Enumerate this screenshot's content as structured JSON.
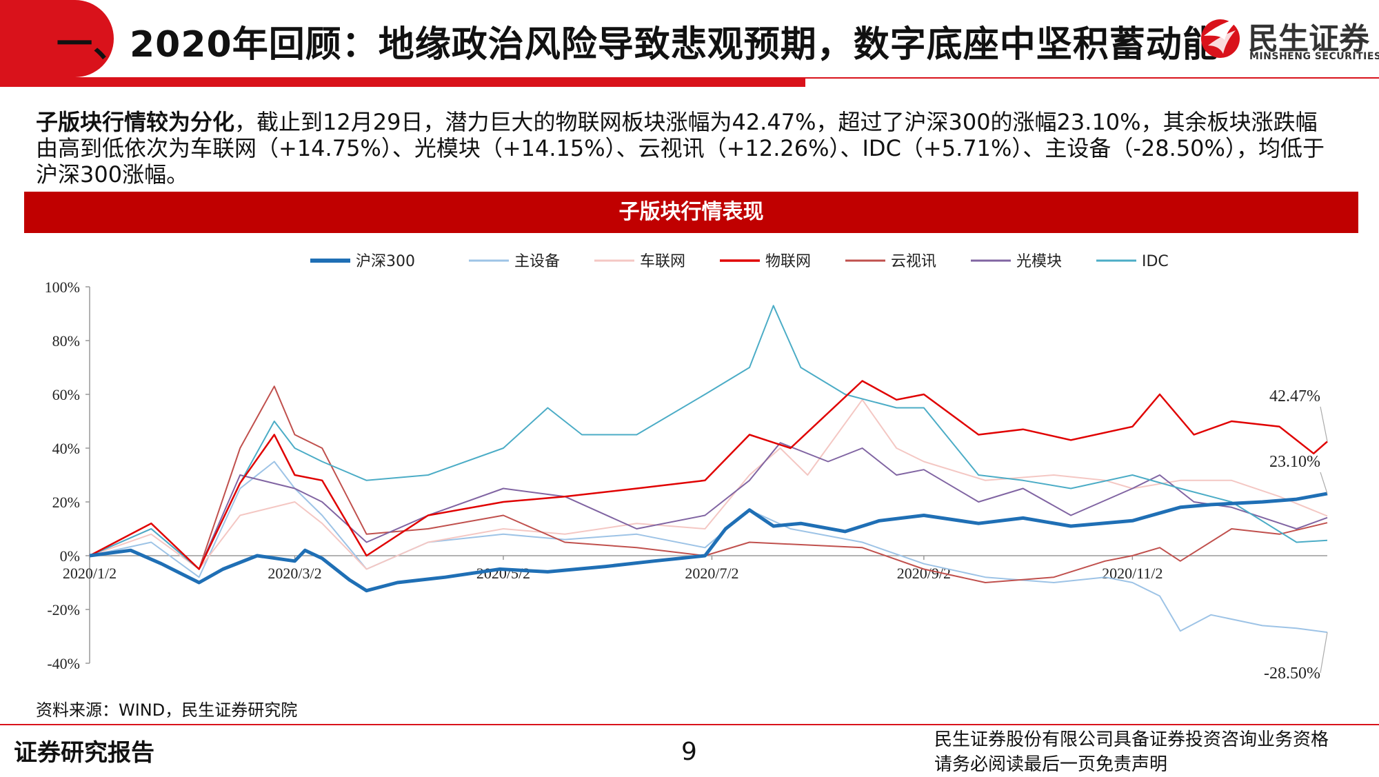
{
  "header": {
    "title": "一、2020年回顾：地缘政治风险导致悲观预期，数字底座中坚积蓄动能",
    "logo_cn": "民生证券",
    "logo_en": "MINSHENG SECURITIES"
  },
  "summary": {
    "bold_lead": "子版块行情较为分化",
    "text": "，截止到12月29日，潜力巨大的物联网板块涨幅为42.47%，超过了沪深300的涨幅23.10%，其余板块涨跌幅由高到低依次为车联网（+14.75%）、光模块（+14.15%）、云视讯（+12.26%）、IDC（+5.71%）、主设备（-28.50%），均低于沪深300涨幅。"
  },
  "chart_header": "子版块行情表现",
  "source": "资料来源：WIND，民生证券研究院",
  "footer": {
    "left": "证券研究报告",
    "page": "9",
    "right_line1": "民生证券股份有限公司具备证券投资咨询业务资格",
    "right_line2": "请务必阅读最后一页免责声明"
  },
  "colors": {
    "brand_red": "#d9121b",
    "header_red": "#c00000"
  },
  "chart_data": {
    "type": "line",
    "title": "",
    "xlabel": "",
    "ylabel": "",
    "ylim": [
      -40,
      100
    ],
    "yticks": [
      "100%",
      "80%",
      "60%",
      "40%",
      "20%",
      "0%",
      "-20%",
      "-40%"
    ],
    "ytick_values": [
      100,
      80,
      60,
      40,
      20,
      0,
      -20,
      -40
    ],
    "xlim": [
      "2020/1/2",
      "2020/12/29"
    ],
    "xticks": [
      "2020/1/2",
      "2020/3/2",
      "2020/5/2",
      "2020/7/2",
      "2020/9/2",
      "2020/11/2"
    ],
    "legend_position": "top",
    "grid": false,
    "annotations": [
      {
        "text": "42.47%",
        "series": "物联网"
      },
      {
        "text": "23.10%",
        "series": "沪深300"
      },
      {
        "text": "-28.50%",
        "series": "主设备"
      }
    ],
    "series": [
      {
        "name": "沪深300",
        "color": "#1f6fb5",
        "width": 5,
        "points": [
          [
            "2020/1/2",
            0
          ],
          [
            "2020/1/14",
            2
          ],
          [
            "2020/1/23",
            -3
          ],
          [
            "2020/2/3",
            -10
          ],
          [
            "2020/2/10",
            -5
          ],
          [
            "2020/2/20",
            0
          ],
          [
            "2020/3/2",
            -2
          ],
          [
            "2020/3/5",
            2
          ],
          [
            "2020/3/10",
            -1
          ],
          [
            "2020/3/18",
            -9
          ],
          [
            "2020/3/23",
            -13
          ],
          [
            "2020/4/1",
            -10
          ],
          [
            "2020/4/15",
            -8
          ],
          [
            "2020/5/1",
            -5
          ],
          [
            "2020/5/15",
            -6
          ],
          [
            "2020/6/1",
            -4
          ],
          [
            "2020/6/15",
            -2
          ],
          [
            "2020/6/30",
            0
          ],
          [
            "2020/7/6",
            10
          ],
          [
            "2020/7/13",
            17
          ],
          [
            "2020/7/20",
            11
          ],
          [
            "2020/7/28",
            12
          ],
          [
            "2020/8/10",
            9
          ],
          [
            "2020/8/20",
            13
          ],
          [
            "2020/9/2",
            15
          ],
          [
            "2020/9/18",
            12
          ],
          [
            "2020/10/1",
            14
          ],
          [
            "2020/10/15",
            11
          ],
          [
            "2020/11/2",
            13
          ],
          [
            "2020/11/16",
            18
          ],
          [
            "2020/11/25",
            19
          ],
          [
            "2020/12/10",
            20
          ],
          [
            "2020/12/20",
            21
          ],
          [
            "2020/12/29",
            23.1
          ]
        ]
      },
      {
        "name": "主设备",
        "color": "#9dc3e6",
        "width": 2,
        "points": [
          [
            "2020/1/2",
            0
          ],
          [
            "2020/1/20",
            5
          ],
          [
            "2020/2/3",
            -8
          ],
          [
            "2020/2/15",
            25
          ],
          [
            "2020/2/25",
            35
          ],
          [
            "2020/3/2",
            25
          ],
          [
            "2020/3/10",
            15
          ],
          [
            "2020/3/23",
            -5
          ],
          [
            "2020/4/10",
            5
          ],
          [
            "2020/5/2",
            8
          ],
          [
            "2020/5/20",
            6
          ],
          [
            "2020/6/10",
            8
          ],
          [
            "2020/6/30",
            3
          ],
          [
            "2020/7/13",
            17
          ],
          [
            "2020/7/25",
            10
          ],
          [
            "2020/8/15",
            5
          ],
          [
            "2020/9/2",
            -3
          ],
          [
            "2020/9/20",
            -8
          ],
          [
            "2020/10/10",
            -10
          ],
          [
            "2020/10/25",
            -8
          ],
          [
            "2020/11/2",
            -10
          ],
          [
            "2020/11/10",
            -15
          ],
          [
            "2020/11/16",
            -28
          ],
          [
            "2020/11/25",
            -22
          ],
          [
            "2020/12/10",
            -26
          ],
          [
            "2020/12/20",
            -27
          ],
          [
            "2020/12/29",
            -28.5
          ]
        ]
      },
      {
        "name": "车联网",
        "color": "#f4c7c3",
        "width": 2,
        "points": [
          [
            "2020/1/2",
            0
          ],
          [
            "2020/1/20",
            8
          ],
          [
            "2020/2/3",
            -5
          ],
          [
            "2020/2/15",
            15
          ],
          [
            "2020/3/2",
            20
          ],
          [
            "2020/3/10",
            12
          ],
          [
            "2020/3/23",
            -5
          ],
          [
            "2020/4/10",
            5
          ],
          [
            "2020/5/2",
            10
          ],
          [
            "2020/5/20",
            8
          ],
          [
            "2020/6/10",
            12
          ],
          [
            "2020/6/30",
            10
          ],
          [
            "2020/7/13",
            30
          ],
          [
            "2020/7/22",
            40
          ],
          [
            "2020/7/30",
            30
          ],
          [
            "2020/8/15",
            58
          ],
          [
            "2020/8/25",
            40
          ],
          [
            "2020/9/2",
            35
          ],
          [
            "2020/9/20",
            28
          ],
          [
            "2020/10/10",
            30
          ],
          [
            "2020/10/25",
            28
          ],
          [
            "2020/11/2",
            25
          ],
          [
            "2020/11/16",
            28
          ],
          [
            "2020/12/1",
            28
          ],
          [
            "2020/12/15",
            22
          ],
          [
            "2020/12/29",
            14.75
          ]
        ]
      },
      {
        "name": "物联网",
        "color": "#e00000",
        "width": 2.5,
        "points": [
          [
            "2020/1/2",
            0
          ],
          [
            "2020/1/20",
            12
          ],
          [
            "2020/2/3",
            -5
          ],
          [
            "2020/2/15",
            27
          ],
          [
            "2020/2/25",
            45
          ],
          [
            "2020/3/2",
            30
          ],
          [
            "2020/3/10",
            28
          ],
          [
            "2020/3/23",
            0
          ],
          [
            "2020/4/10",
            15
          ],
          [
            "2020/5/2",
            20
          ],
          [
            "2020/5/20",
            22
          ],
          [
            "2020/6/10",
            25
          ],
          [
            "2020/6/30",
            28
          ],
          [
            "2020/7/13",
            45
          ],
          [
            "2020/7/25",
            40
          ],
          [
            "2020/8/15",
            65
          ],
          [
            "2020/8/25",
            58
          ],
          [
            "2020/9/2",
            60
          ],
          [
            "2020/9/18",
            45
          ],
          [
            "2020/10/1",
            47
          ],
          [
            "2020/10/15",
            43
          ],
          [
            "2020/11/2",
            48
          ],
          [
            "2020/11/10",
            60
          ],
          [
            "2020/11/20",
            45
          ],
          [
            "2020/12/1",
            50
          ],
          [
            "2020/12/15",
            48
          ],
          [
            "2020/12/25",
            38
          ],
          [
            "2020/12/29",
            42.47
          ]
        ]
      },
      {
        "name": "云视讯",
        "color": "#c0504d",
        "width": 2,
        "points": [
          [
            "2020/1/2",
            0
          ],
          [
            "2020/1/20",
            12
          ],
          [
            "2020/2/3",
            -5
          ],
          [
            "2020/2/15",
            40
          ],
          [
            "2020/2/25",
            63
          ],
          [
            "2020/3/2",
            45
          ],
          [
            "2020/3/10",
            40
          ],
          [
            "2020/3/23",
            8
          ],
          [
            "2020/4/10",
            10
          ],
          [
            "2020/5/2",
            15
          ],
          [
            "2020/5/20",
            5
          ],
          [
            "2020/6/10",
            3
          ],
          [
            "2020/6/30",
            0
          ],
          [
            "2020/7/13",
            5
          ],
          [
            "2020/8/15",
            3
          ],
          [
            "2020/9/2",
            -5
          ],
          [
            "2020/9/20",
            -10
          ],
          [
            "2020/10/10",
            -8
          ],
          [
            "2020/10/25",
            -2
          ],
          [
            "2020/11/2",
            0
          ],
          [
            "2020/11/10",
            3
          ],
          [
            "2020/11/16",
            -2
          ],
          [
            "2020/12/1",
            10
          ],
          [
            "2020/12/15",
            8
          ],
          [
            "2020/12/29",
            12.26
          ]
        ]
      },
      {
        "name": "光模块",
        "color": "#8064a2",
        "width": 2,
        "points": [
          [
            "2020/1/2",
            0
          ],
          [
            "2020/1/20",
            10
          ],
          [
            "2020/2/3",
            -5
          ],
          [
            "2020/2/15",
            30
          ],
          [
            "2020/3/2",
            25
          ],
          [
            "2020/3/10",
            20
          ],
          [
            "2020/3/23",
            5
          ],
          [
            "2020/4/10",
            15
          ],
          [
            "2020/5/2",
            25
          ],
          [
            "2020/5/20",
            22
          ],
          [
            "2020/6/10",
            10
          ],
          [
            "2020/6/30",
            15
          ],
          [
            "2020/7/13",
            28
          ],
          [
            "2020/7/22",
            42
          ],
          [
            "2020/8/5",
            35
          ],
          [
            "2020/8/15",
            40
          ],
          [
            "2020/8/25",
            30
          ],
          [
            "2020/9/2",
            32
          ],
          [
            "2020/9/18",
            20
          ],
          [
            "2020/10/1",
            25
          ],
          [
            "2020/10/15",
            15
          ],
          [
            "2020/11/2",
            25
          ],
          [
            "2020/11/10",
            30
          ],
          [
            "2020/11/20",
            20
          ],
          [
            "2020/12/1",
            18
          ],
          [
            "2020/12/20",
            10
          ],
          [
            "2020/12/29",
            14.15
          ]
        ]
      },
      {
        "name": "IDC",
        "color": "#4bacc6",
        "width": 2,
        "points": [
          [
            "2020/1/2",
            0
          ],
          [
            "2020/1/20",
            10
          ],
          [
            "2020/2/3",
            -5
          ],
          [
            "2020/2/15",
            27
          ],
          [
            "2020/2/25",
            50
          ],
          [
            "2020/3/2",
            40
          ],
          [
            "2020/3/10",
            35
          ],
          [
            "2020/3/23",
            28
          ],
          [
            "2020/4/10",
            30
          ],
          [
            "2020/5/2",
            40
          ],
          [
            "2020/5/15",
            55
          ],
          [
            "2020/5/25",
            45
          ],
          [
            "2020/6/10",
            45
          ],
          [
            "2020/6/30",
            60
          ],
          [
            "2020/7/13",
            70
          ],
          [
            "2020/7/20",
            93
          ],
          [
            "2020/7/28",
            70
          ],
          [
            "2020/8/10",
            60
          ],
          [
            "2020/8/25",
            55
          ],
          [
            "2020/9/2",
            55
          ],
          [
            "2020/9/18",
            30
          ],
          [
            "2020/10/1",
            28
          ],
          [
            "2020/10/15",
            25
          ],
          [
            "2020/11/2",
            30
          ],
          [
            "2020/11/16",
            25
          ],
          [
            "2020/12/1",
            20
          ],
          [
            "2020/12/20",
            5
          ],
          [
            "2020/12/29",
            5.71
          ]
        ]
      }
    ]
  }
}
